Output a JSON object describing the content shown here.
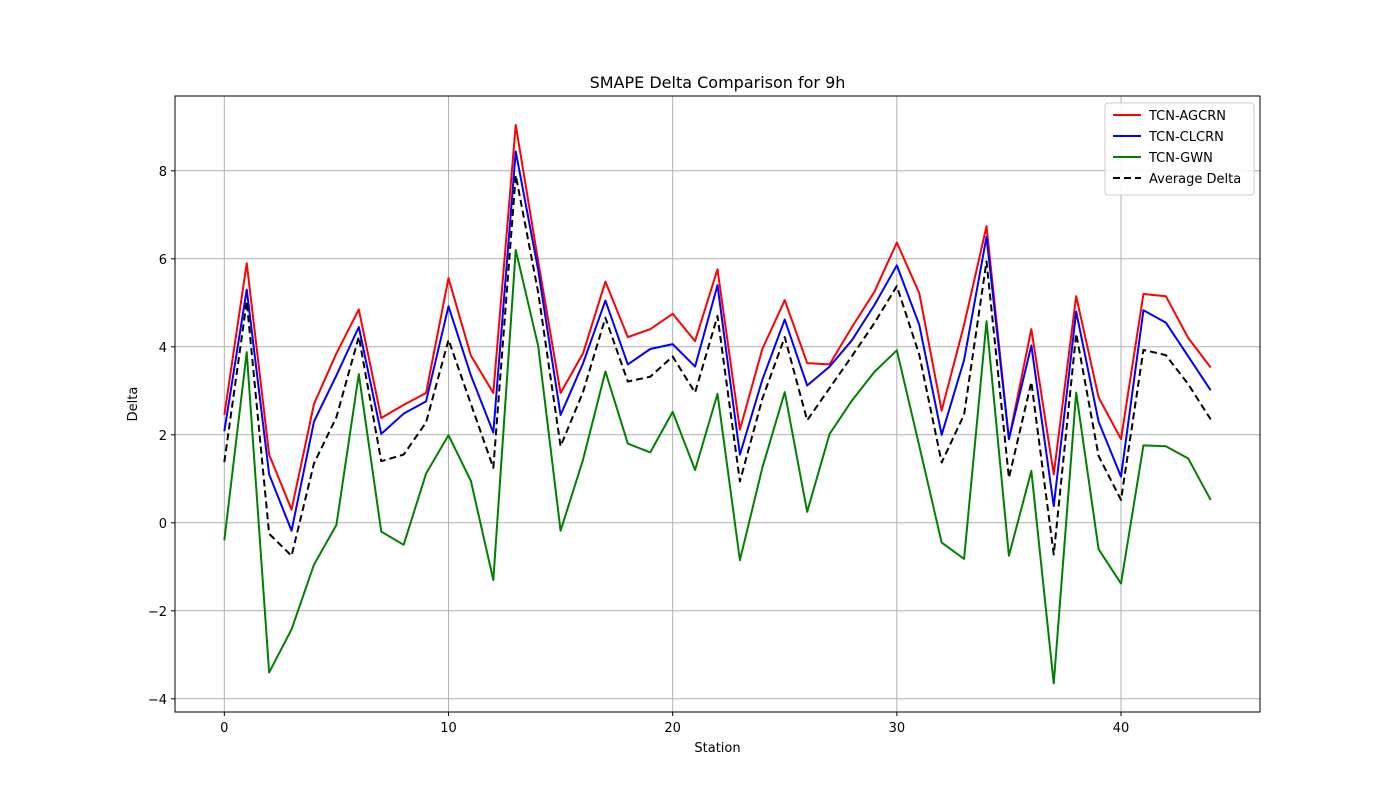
{
  "chart_data": {
    "type": "line",
    "title": "SMAPE Delta Comparison for 9h",
    "xlabel": "Station",
    "ylabel": "Delta",
    "xlim": [
      -2.2,
      46.2
    ],
    "ylim": [
      -4.3,
      9.7
    ],
    "xticks": [
      0,
      10,
      20,
      30,
      40
    ],
    "yticks": [
      -4,
      -2,
      0,
      2,
      4,
      6,
      8
    ],
    "xtick_labels": [
      "0",
      "10",
      "20",
      "30",
      "40"
    ],
    "ytick_labels": [
      "−4",
      "−2",
      "0",
      "2",
      "4",
      "6",
      "8"
    ],
    "grid": true,
    "legend_position": "top-right",
    "x": [
      0,
      1,
      2,
      3,
      4,
      5,
      6,
      7,
      8,
      9,
      10,
      11,
      12,
      13,
      14,
      15,
      16,
      17,
      18,
      19,
      20,
      21,
      22,
      23,
      24,
      25,
      26,
      27,
      28,
      29,
      30,
      31,
      32,
      33,
      34,
      35,
      36,
      37,
      38,
      39,
      40,
      41,
      42,
      43,
      44
    ],
    "series": [
      {
        "name": "TCN-AGCRN",
        "color": "#ff0000",
        "dash": "solid",
        "values": [
          2.45,
          5.9,
          1.55,
          0.3,
          2.7,
          3.85,
          4.85,
          2.38,
          2.68,
          2.95,
          5.56,
          3.8,
          2.95,
          9.04,
          5.95,
          2.95,
          3.85,
          5.48,
          4.22,
          4.4,
          4.75,
          4.13,
          5.76,
          2.12,
          3.95,
          5.06,
          3.63,
          3.6,
          4.45,
          5.25,
          6.37,
          5.22,
          2.55,
          4.5,
          6.74,
          1.9,
          4.4,
          1.1,
          5.15,
          2.85,
          1.9,
          5.2,
          5.15,
          4.2,
          3.53
        ]
      },
      {
        "name": "TCN-CLCRN",
        "color": "#0000ff",
        "dash": "solid",
        "values": [
          2.08,
          5.3,
          1.1,
          -0.18,
          2.3,
          3.35,
          4.45,
          2.02,
          2.48,
          2.76,
          4.92,
          3.35,
          2.05,
          8.44,
          5.75,
          2.45,
          3.62,
          5.05,
          3.6,
          3.95,
          4.06,
          3.55,
          5.4,
          1.55,
          3.25,
          4.62,
          3.12,
          3.55,
          4.15,
          4.95,
          5.85,
          4.5,
          2.0,
          3.7,
          6.5,
          1.9,
          4.03,
          0.38,
          4.8,
          2.3,
          1.05,
          4.83,
          4.55,
          3.78,
          3.01
        ]
      },
      {
        "name": "TCN-GWN",
        "color": "#008000",
        "dash": "solid",
        "values": [
          -0.4,
          3.88,
          -3.4,
          -2.42,
          -0.95,
          -0.05,
          3.38,
          -0.2,
          -0.5,
          1.12,
          1.99,
          0.95,
          -1.3,
          6.2,
          4.02,
          -0.18,
          1.43,
          3.44,
          1.8,
          1.6,
          2.52,
          1.2,
          2.93,
          -0.85,
          1.25,
          2.97,
          0.25,
          2.02,
          2.78,
          3.43,
          3.92,
          1.75,
          -0.45,
          -0.82,
          4.58,
          -0.75,
          1.18,
          -3.65,
          2.96,
          -0.6,
          -1.38,
          1.76,
          1.74,
          1.46,
          0.52
        ]
      },
      {
        "name": "Average Delta",
        "color": "#000000",
        "dash": "dashed",
        "values": [
          1.38,
          5.03,
          -0.25,
          -0.75,
          1.35,
          2.4,
          4.23,
          1.4,
          1.55,
          2.28,
          4.16,
          2.7,
          1.25,
          7.9,
          5.24,
          1.74,
          2.97,
          4.66,
          3.21,
          3.32,
          3.78,
          2.96,
          4.7,
          0.94,
          2.82,
          4.22,
          2.33,
          3.06,
          3.79,
          4.54,
          5.38,
          3.82,
          1.37,
          2.46,
          5.94,
          1.02,
          3.2,
          -0.72,
          4.3,
          1.52,
          0.52,
          3.93,
          3.81,
          3.15,
          2.35
        ]
      }
    ]
  }
}
